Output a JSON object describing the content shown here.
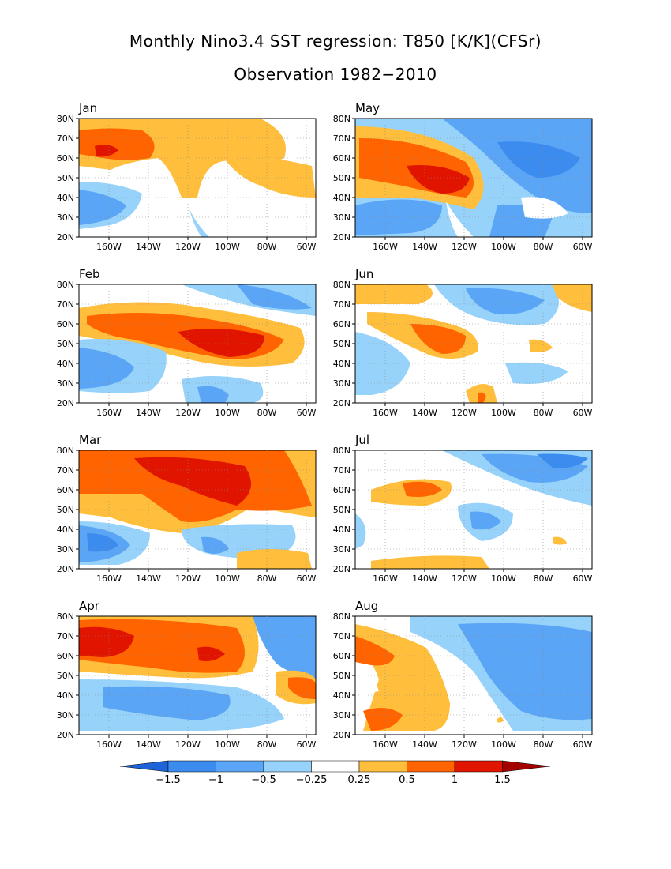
{
  "title": "Monthly Nino3.4 SST regression: T850 [K/K](CFSr)",
  "subtitle": "Observation 1982−2010",
  "lat_labels": [
    "80N",
    "70N",
    "60N",
    "50N",
    "40N",
    "30N",
    "20N"
  ],
  "lon_labels": [
    "160W",
    "140W",
    "120W",
    "100W",
    "80W",
    "60W"
  ],
  "panels": [
    {
      "month": "Jan"
    },
    {
      "month": "May"
    },
    {
      "month": "Feb"
    },
    {
      "month": "Jun"
    },
    {
      "month": "Mar"
    },
    {
      "month": "Jul"
    },
    {
      "month": "Apr"
    },
    {
      "month": "Aug"
    }
  ],
  "colorbar": {
    "labels": [
      "−1.5",
      "−1",
      "−0.5",
      "−0.25",
      "0.25",
      "0.5",
      "1",
      "1.5"
    ],
    "colors": [
      "#1e64d8",
      "#3c8cf0",
      "#5aa5f5",
      "#96d2fa",
      "#ffffff",
      "#ffbe3c",
      "#ff6400",
      "#e11400",
      "#a50000"
    ]
  },
  "colors": {
    "strong_negative": "#1e64d8",
    "negative": "#3c8cf0",
    "weak_negative": "#5aa5f5",
    "slight_negative": "#96d2fa",
    "neutral": "#ffffff",
    "slight_positive": "#ffbe3c",
    "positive": "#ff6400",
    "strong_positive": "#e11400"
  }
}
